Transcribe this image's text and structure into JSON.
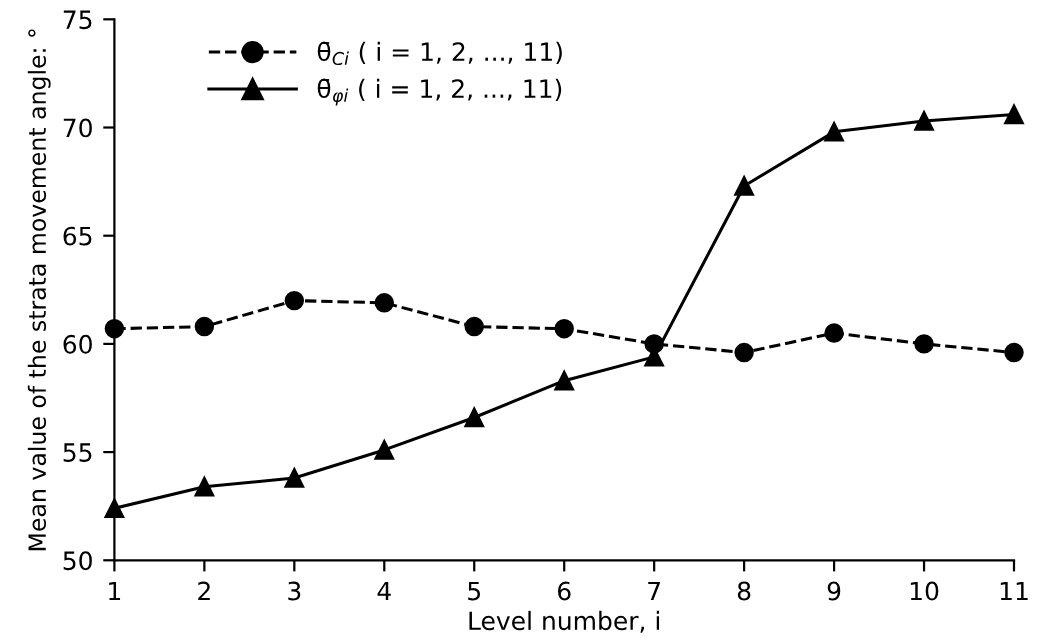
{
  "chart_data": {
    "type": "line",
    "xlabel": "Level number, i",
    "ylabel": "Mean value of the strata movement angle: °",
    "x": [
      1,
      2,
      3,
      4,
      5,
      6,
      7,
      8,
      9,
      10,
      11
    ],
    "series": [
      {
        "name": "θ̄$_{Ci}$ ( i = 1, 2, ..., 11)",
        "color": "#000000",
        "marker": "circle",
        "line_style": "dashed",
        "values": [
          60.7,
          60.8,
          62.0,
          61.9,
          60.8,
          60.7,
          60.0,
          59.6,
          60.5,
          60.0,
          59.6
        ]
      },
      {
        "name": "θ̄$_{φi}$ ( i = 1, 2, ..., 11)",
        "color": "#000000",
        "marker": "triangle",
        "line_style": "solid",
        "values": [
          52.4,
          53.4,
          53.8,
          55.1,
          56.6,
          58.3,
          59.4,
          67.3,
          69.8,
          70.3,
          70.6
        ]
      }
    ],
    "xlim": [
      1,
      11
    ],
    "xticks": [
      1,
      2,
      3,
      4,
      5,
      6,
      7,
      8,
      9,
      10,
      11
    ],
    "ylim": [
      50,
      75
    ],
    "yticks": [
      50,
      55,
      60,
      65,
      70,
      75
    ],
    "grid": false,
    "legend": "top left"
  }
}
